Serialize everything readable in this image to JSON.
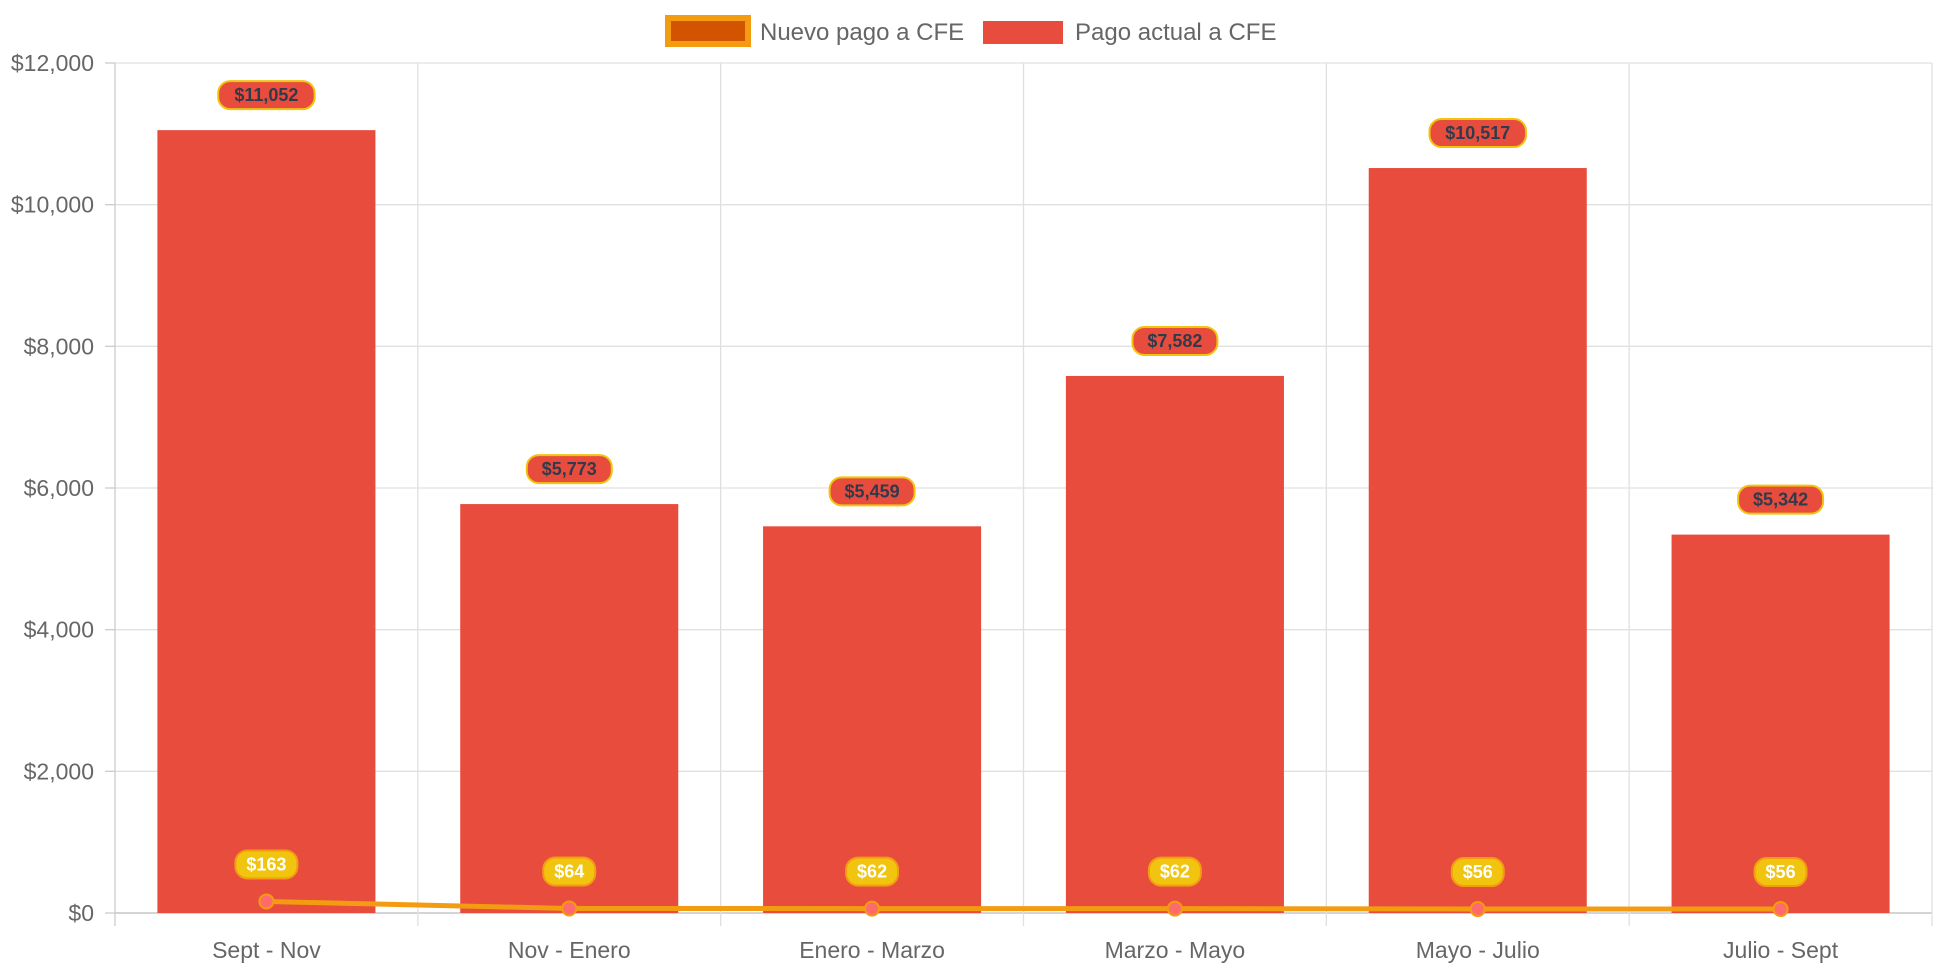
{
  "chart_data": {
    "type": "bar",
    "categories": [
      "Sept - Nov",
      "Nov - Enero",
      "Enero - Marzo",
      "Marzo - Mayo",
      "Mayo - Julio",
      "Julio - Sept"
    ],
    "series": [
      {
        "name": "Nuevo pago a CFE",
        "type": "line",
        "values": [
          163,
          64,
          62,
          62,
          56,
          56
        ],
        "labels": [
          "$163",
          "$64",
          "$62",
          "$62",
          "$56",
          "$56"
        ],
        "color": "#f39c12",
        "fill_color": "#d35400",
        "point_color": "#ff6b6b"
      },
      {
        "name": "Pago actual a CFE",
        "type": "bar",
        "values": [
          11052,
          5773,
          5459,
          7582,
          10517,
          5342
        ],
        "labels": [
          "$11,052",
          "$5,773",
          "$5,459",
          "$7,582",
          "$10,517",
          "$5,342"
        ],
        "color": "#e74c3c"
      }
    ],
    "ylim": [
      0,
      12000
    ],
    "yticks": [
      0,
      2000,
      4000,
      6000,
      8000,
      10000,
      12000
    ],
    "ytick_labels": [
      "$0",
      "$2,000",
      "$4,000",
      "$6,000",
      "$8,000",
      "$10,000",
      "$12,000"
    ],
    "title": "",
    "xlabel": "",
    "ylabel": "",
    "grid": true,
    "legend_position": "top-center",
    "bar_label_color": "#e74c3c",
    "bar_label_border": "#f1c40f",
    "line_label_color": "#f1c40f",
    "line_label_border": "#f39c12"
  }
}
